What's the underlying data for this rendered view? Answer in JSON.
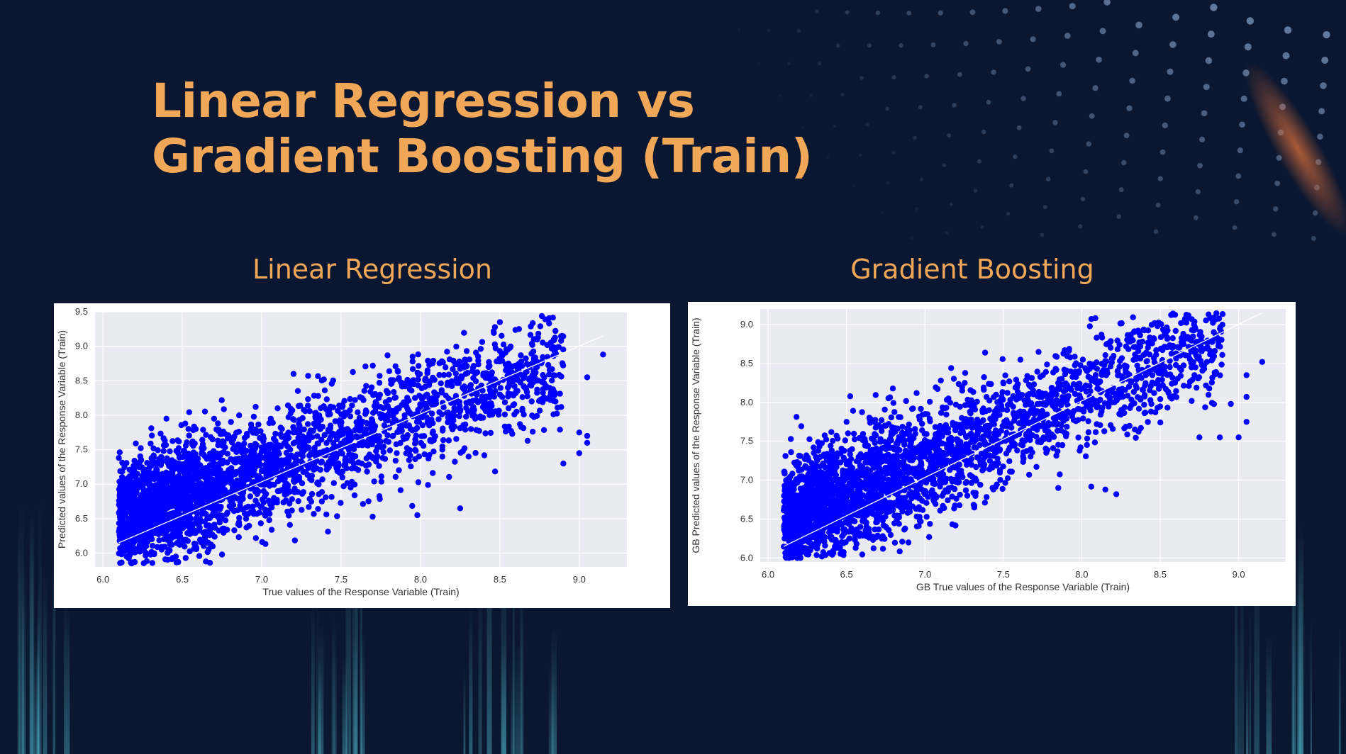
{
  "slide": {
    "title_line1": "Linear Regression vs",
    "title_line2": "Gradient Boosting (Train)",
    "accent_color": "#f0a858",
    "background_color": "#0b1730"
  },
  "panels": [
    {
      "heading": "Linear Regression"
    },
    {
      "heading": "Gradient Boosting"
    }
  ],
  "chart_data": [
    {
      "type": "scatter",
      "title": "",
      "xlabel": "True values of the Response Variable (Train)",
      "ylabel": "Predicted values of the Response Variable (Train)",
      "xlim": [
        5.95,
        9.3
      ],
      "ylim": [
        5.8,
        9.5
      ],
      "x_ticks": [
        "6.0",
        "6.5",
        "7.0",
        "7.5",
        "8.0",
        "8.5",
        "9.0"
      ],
      "y_ticks": [
        "6.0",
        "6.5",
        "7.0",
        "7.5",
        "8.0",
        "8.5",
        "9.0",
        "9.5"
      ],
      "grid": true,
      "plot_background": "#eaeaf2",
      "point_color": "#0000ff",
      "fit_line": {
        "color": "#ffffff",
        "x": [
          6.1,
          9.15
        ],
        "y": [
          6.15,
          9.15
        ]
      },
      "point_count": 3000,
      "points": [
        [
          8.5,
          9.35
        ],
        [
          8.62,
          9.25
        ],
        [
          8.5,
          8.93
        ],
        [
          9.15,
          8.88
        ],
        [
          7.95,
          8.85
        ],
        [
          7.95,
          8.78
        ],
        [
          7.2,
          8.6
        ],
        [
          8.45,
          8.62
        ],
        [
          9.05,
          8.55
        ],
        [
          8.42,
          8.55
        ],
        [
          8.65,
          8.42
        ],
        [
          8.55,
          8.4
        ],
        [
          8.7,
          8.2
        ],
        [
          8.85,
          8.2
        ],
        [
          9.0,
          7.75
        ],
        [
          9.05,
          7.6
        ],
        [
          9.05,
          7.7
        ],
        [
          9.0,
          7.45
        ],
        [
          8.9,
          7.3
        ],
        [
          7.98,
          6.55
        ],
        [
          8.25,
          6.65
        ],
        [
          6.18,
          5.85
        ],
        [
          6.3,
          5.98
        ],
        [
          6.75,
          5.98
        ],
        [
          7.1,
          8.1
        ],
        [
          6.7,
          7.95
        ],
        [
          6.4,
          7.95
        ],
        [
          7.2,
          7.75
        ],
        [
          8.1,
          8.3
        ],
        [
          8.3,
          8.05
        ]
      ],
      "point_cloud": {
        "x_range": [
          6.1,
          8.9
        ],
        "center_intercept": 6.5,
        "slope": 0.8,
        "spread_y": 0.4
      }
    },
    {
      "type": "scatter",
      "title": "",
      "xlabel": "GB True values of the Response Variable (Train)",
      "ylabel": "GB Predicted values of the Response Variable (Train)",
      "xlim": [
        5.95,
        9.3
      ],
      "ylim": [
        5.95,
        9.2
      ],
      "x_ticks": [
        "6.0",
        "6.5",
        "7.0",
        "7.5",
        "8.0",
        "8.5",
        "9.0"
      ],
      "y_ticks": [
        "6.0",
        "6.5",
        "7.0",
        "7.5",
        "8.0",
        "8.5",
        "9.0"
      ],
      "grid": true,
      "plot_background": "#eaeaf2",
      "point_color": "#0000ff",
      "fit_line": {
        "color": "#ffffff",
        "x": [
          6.1,
          9.15
        ],
        "y": [
          6.15,
          9.15
        ]
      },
      "point_count": 3000,
      "points": [
        [
          9.15,
          8.52
        ],
        [
          9.05,
          8.35
        ],
        [
          9.05,
          8.07
        ],
        [
          9.05,
          7.75
        ],
        [
          8.95,
          7.98
        ],
        [
          9.0,
          7.55
        ],
        [
          8.88,
          7.55
        ],
        [
          8.75,
          7.55
        ],
        [
          8.7,
          8.5
        ],
        [
          8.6,
          8.48
        ],
        [
          8.5,
          8.45
        ],
        [
          8.22,
          6.82
        ],
        [
          8.15,
          6.88
        ],
        [
          7.85,
          6.9
        ],
        [
          6.25,
          6.12
        ],
        [
          6.5,
          7.75
        ],
        [
          6.75,
          7.7
        ],
        [
          7.15,
          8.05
        ],
        [
          7.3,
          8.0
        ],
        [
          8.45,
          8.35
        ]
      ],
      "point_cloud": {
        "x_range": [
          6.1,
          8.9
        ],
        "center_intercept": 6.45,
        "slope": 0.88,
        "spread_y": 0.38
      }
    }
  ]
}
